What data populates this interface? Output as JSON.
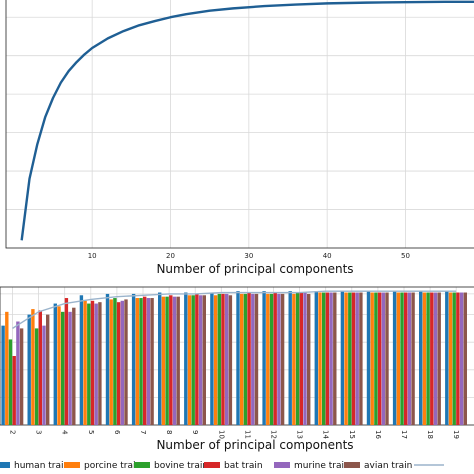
{
  "chart_data": [
    {
      "type": "line",
      "xlabel": "Number of principal components",
      "ylabel": "",
      "xlim": [
        -1,
        59
      ],
      "ylim": [
        0.35,
        1.0
      ],
      "grid": true,
      "x_ticks": [
        10,
        20,
        30,
        40,
        50
      ],
      "series": [
        {
          "color": "#1f5f94",
          "x": [
            1,
            2,
            3,
            4,
            5,
            6,
            7,
            8,
            9,
            10,
            12,
            14,
            16,
            18,
            20,
            22,
            25,
            28,
            32,
            36,
            40,
            45,
            50,
            55,
            59
          ],
          "y": [
            0.37,
            0.53,
            0.62,
            0.69,
            0.74,
            0.78,
            0.81,
            0.833,
            0.853,
            0.87,
            0.895,
            0.914,
            0.929,
            0.94,
            0.95,
            0.958,
            0.967,
            0.973,
            0.979,
            0.983,
            0.986,
            0.988,
            0.989,
            0.99,
            0.99
          ]
        }
      ]
    },
    {
      "type": "bar",
      "xlabel": "Number of principal components",
      "ylabel": "",
      "ylim": [
        0.0,
        1.0
      ],
      "grid": true,
      "categories": [
        "2",
        "3",
        "4",
        "5",
        "6",
        "7",
        "8",
        "9",
        "10",
        "11",
        "12",
        "13",
        "14",
        "15",
        "16",
        "17",
        "18",
        "19"
      ],
      "legend_position": "bottom",
      "series": [
        {
          "name": "human train",
          "color": "#1f77b4",
          "values": [
            0.72,
            0.8,
            0.88,
            0.94,
            0.95,
            0.95,
            0.96,
            0.96,
            0.96,
            0.97,
            0.97,
            0.97,
            0.97,
            0.97,
            0.97,
            0.97,
            0.97,
            0.97
          ]
        },
        {
          "name": "porcine train",
          "color": "#ff7f0e",
          "values": [
            0.82,
            0.84,
            0.86,
            0.9,
            0.91,
            0.92,
            0.93,
            0.94,
            0.94,
            0.95,
            0.95,
            0.95,
            0.96,
            0.96,
            0.96,
            0.96,
            0.96,
            0.96
          ]
        },
        {
          "name": "bovine train",
          "color": "#2ca02c",
          "values": [
            0.62,
            0.7,
            0.82,
            0.88,
            0.92,
            0.92,
            0.93,
            0.94,
            0.95,
            0.95,
            0.95,
            0.96,
            0.96,
            0.96,
            0.96,
            0.96,
            0.96,
            0.96
          ]
        },
        {
          "name": "bat train",
          "color": "#d62728",
          "values": [
            0.5,
            0.83,
            0.92,
            0.9,
            0.89,
            0.93,
            0.94,
            0.95,
            0.95,
            0.96,
            0.96,
            0.96,
            0.96,
            0.96,
            0.96,
            0.96,
            0.96,
            0.96
          ]
        },
        {
          "name": "murine train",
          "color": "#9467bd",
          "values": [
            0.75,
            0.72,
            0.82,
            0.88,
            0.9,
            0.92,
            0.93,
            0.94,
            0.95,
            0.95,
            0.95,
            0.96,
            0.96,
            0.96,
            0.96,
            0.96,
            0.96,
            0.96
          ]
        },
        {
          "name": "avian train",
          "color": "#8c564b",
          "values": [
            0.7,
            0.8,
            0.85,
            0.89,
            0.91,
            0.92,
            0.93,
            0.94,
            0.94,
            0.95,
            0.95,
            0.95,
            0.96,
            0.96,
            0.96,
            0.96,
            0.96,
            0.96
          ]
        },
        {
          "name": "",
          "color": "#9bb4cc",
          "type": "line",
          "values": [
            0.7,
            0.82,
            0.88,
            0.91,
            0.93,
            0.94,
            0.95,
            0.95,
            0.96,
            0.96,
            0.96,
            0.96,
            0.97,
            0.97,
            0.97,
            0.97,
            0.97,
            0.97
          ]
        }
      ]
    }
  ]
}
